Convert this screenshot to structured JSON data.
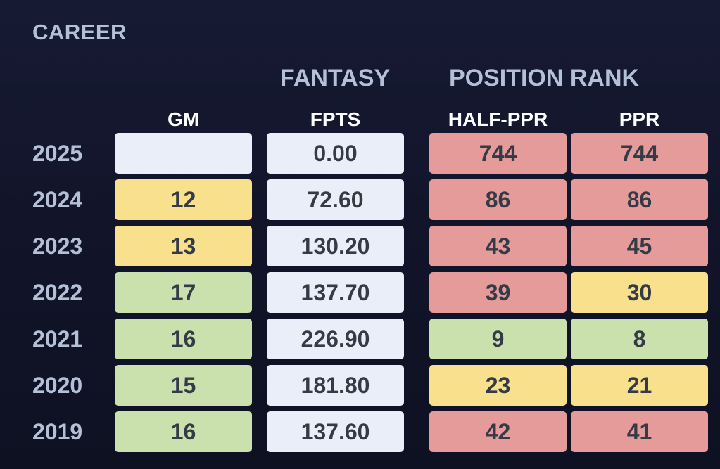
{
  "section_title": "CAREER",
  "group_headers": {
    "fantasy": "FANTASY",
    "position_rank": "POSITION RANK"
  },
  "columns": {
    "gm": "GM",
    "fpts": "FPTS",
    "half_ppr": "HALF-PPR",
    "ppr": "PPR"
  },
  "colors": {
    "neutral": "#e9eef9",
    "good": "#cae0ad",
    "warn": "#f9e08c",
    "bad": "#e69b9b"
  },
  "rows": [
    {
      "year": "2025",
      "gm": "",
      "gm_tone": "neutral",
      "fpts": "0.00",
      "fpts_tone": "neutral",
      "half_ppr": "744",
      "half_ppr_tone": "bad",
      "ppr": "744",
      "ppr_tone": "bad"
    },
    {
      "year": "2024",
      "gm": "12",
      "gm_tone": "warn",
      "fpts": "72.60",
      "fpts_tone": "neutral",
      "half_ppr": "86",
      "half_ppr_tone": "bad",
      "ppr": "86",
      "ppr_tone": "bad"
    },
    {
      "year": "2023",
      "gm": "13",
      "gm_tone": "warn",
      "fpts": "130.20",
      "fpts_tone": "neutral",
      "half_ppr": "43",
      "half_ppr_tone": "bad",
      "ppr": "45",
      "ppr_tone": "bad"
    },
    {
      "year": "2022",
      "gm": "17",
      "gm_tone": "good",
      "fpts": "137.70",
      "fpts_tone": "neutral",
      "half_ppr": "39",
      "half_ppr_tone": "bad",
      "ppr": "30",
      "ppr_tone": "warn"
    },
    {
      "year": "2021",
      "gm": "16",
      "gm_tone": "good",
      "fpts": "226.90",
      "fpts_tone": "neutral",
      "half_ppr": "9",
      "half_ppr_tone": "good",
      "ppr": "8",
      "ppr_tone": "good"
    },
    {
      "year": "2020",
      "gm": "15",
      "gm_tone": "good",
      "fpts": "181.80",
      "fpts_tone": "neutral",
      "half_ppr": "23",
      "half_ppr_tone": "warn",
      "ppr": "21",
      "ppr_tone": "warn"
    },
    {
      "year": "2019",
      "gm": "16",
      "gm_tone": "good",
      "fpts": "137.60",
      "fpts_tone": "neutral",
      "half_ppr": "42",
      "half_ppr_tone": "bad",
      "ppr": "41",
      "ppr_tone": "bad"
    }
  ]
}
